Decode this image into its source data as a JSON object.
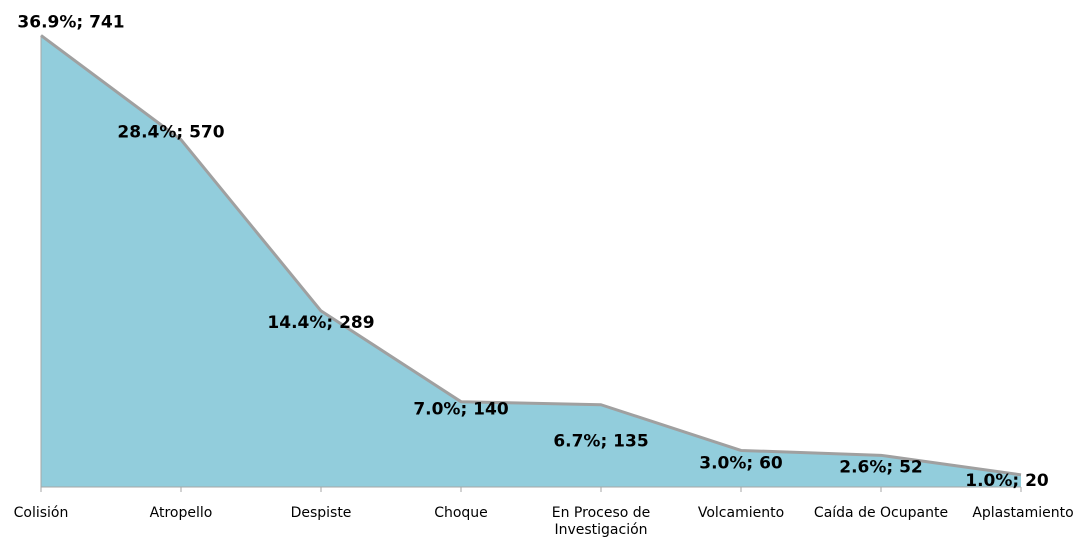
{
  "chart_data": {
    "type": "area",
    "categories": [
      "Colisión",
      "Atropello",
      "Despiste",
      "Choque",
      "En Proceso de Investigación",
      "Volcamiento",
      "Caída de Ocupante",
      "Aplastamiento"
    ],
    "values": [
      741,
      570,
      289,
      140,
      135,
      60,
      52,
      20
    ],
    "value_labels": [
      "36.9%; 741",
      "28.4%; 570",
      "14.4%; 289",
      "7.0%; 140",
      "6.7%; 135",
      "3.0%; 60",
      "2.6%; 52",
      "1.0%; 20"
    ],
    "color": "#92cddc",
    "line_color": "#a0a0a0",
    "ylim": [
      0,
      750
    ]
  }
}
